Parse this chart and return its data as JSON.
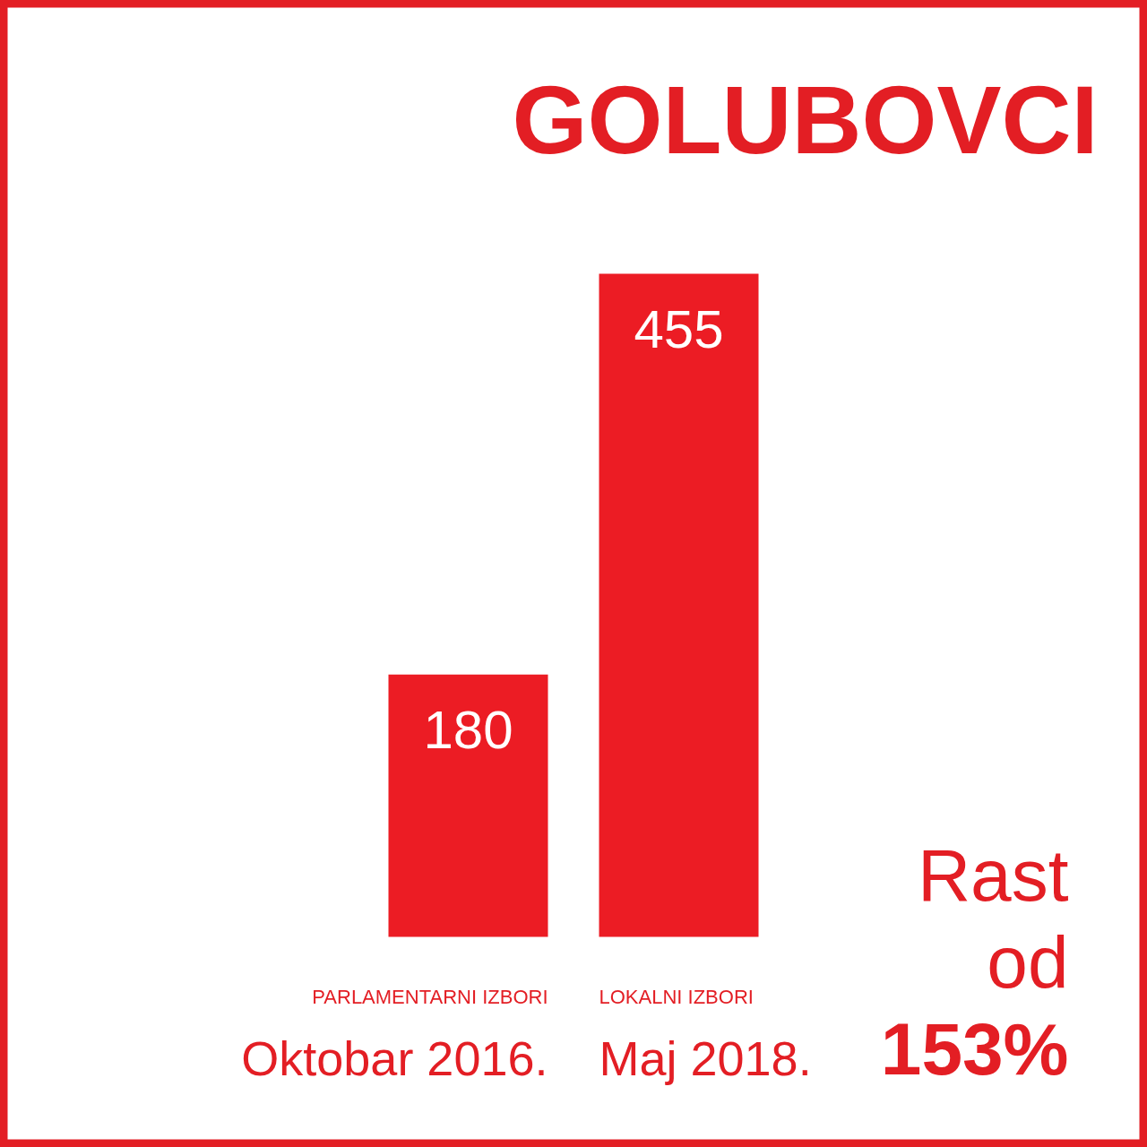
{
  "chart_data": {
    "type": "bar",
    "title": "GOLUBOVCI",
    "categories": [
      "PARLAMENTARNI IZBORI\nOktobar 2016.",
      "LOKALNI IZBORI\nMaj 2018."
    ],
    "values": [
      180,
      455
    ],
    "color": "#ec1c24",
    "data_labels": true,
    "tick_labels": "x",
    "annotations": [
      "Rast\nod\n153%"
    ]
  }
}
